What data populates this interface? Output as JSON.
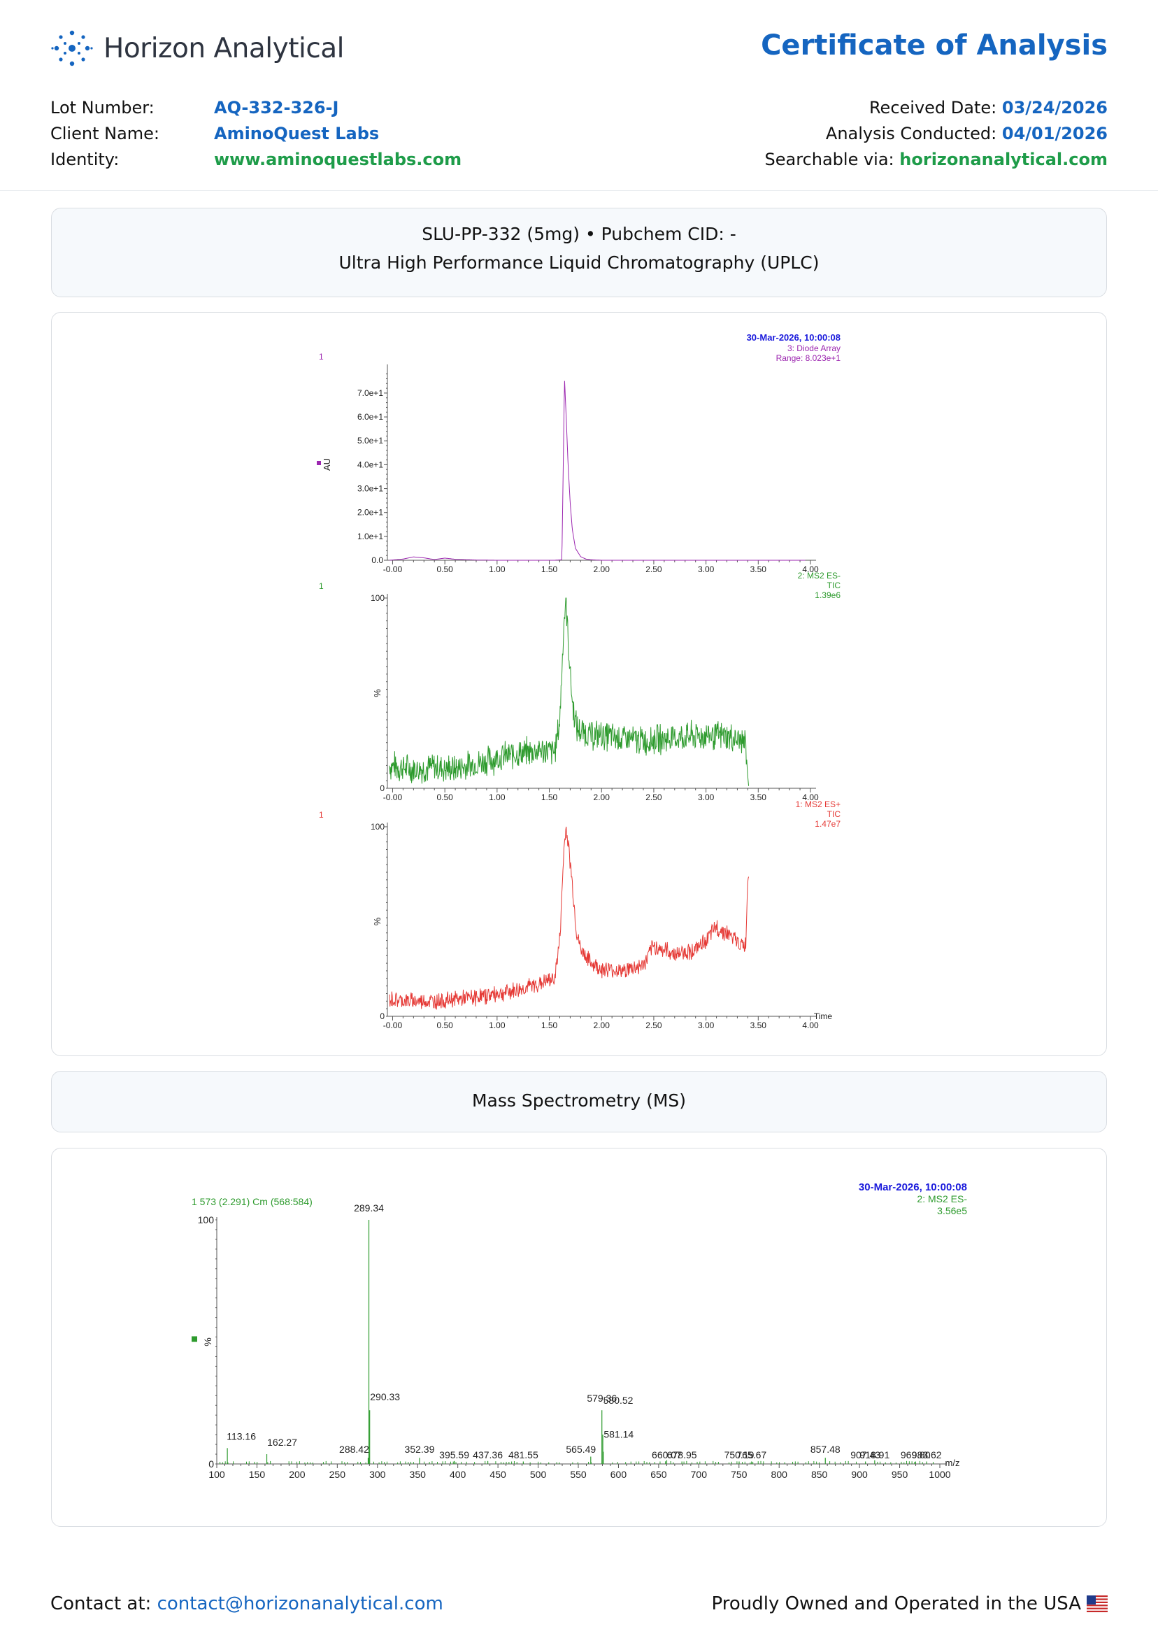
{
  "header": {
    "brand": "Horizon Analytical",
    "doc_title": "Certificate of Analysis",
    "lot_label": "Lot Number:",
    "lot_value": "AQ-332-326-J",
    "client_label": "Client Name:",
    "client_value": "AminoQuest Labs",
    "identity_label": "Identity:",
    "identity_value": "www.aminoquestlabs.com",
    "received_label": "Received Date:",
    "received_value": "03/24/2026",
    "analysis_label": "Analysis Conducted:",
    "analysis_value": "04/01/2026",
    "search_label": "Searchable via:",
    "search_value": "horizonanalytical.com"
  },
  "uplc_panel": {
    "line1": "SLU-PP-332 (5mg) • Pubchem CID: -",
    "line2": "Ultra High Performance Liquid Chromatography (UPLC)"
  },
  "ms_panel": {
    "title": "Mass Spectrometry (MS)"
  },
  "footer": {
    "contact_label": "Contact at:",
    "contact_email": "contact@horizonanalytical.com",
    "tagline": "Proudly Owned and Operated in the USA"
  },
  "colors": {
    "brand_blue": "#1565c0",
    "link_green": "#1e9c49",
    "trace_purple": "#9c27b0",
    "trace_green": "#2e9b2e",
    "trace_red": "#e53935"
  },
  "chart_data": [
    {
      "type": "line",
      "header": {
        "date": "30-Mar-2026, 10:00:08",
        "line2": "3: Diode Array",
        "line3": "Range: 8.023e+1"
      },
      "channel": "1",
      "ylabel": "AU",
      "xlim": [
        -0.05,
        4.0
      ],
      "ylim": [
        0,
        80.23
      ],
      "x_ticks": [
        "-0.00",
        "0.50",
        "1.00",
        "1.50",
        "2.00",
        "2.50",
        "3.00",
        "3.50",
        "4.00"
      ],
      "y_ticks": [
        "0.0",
        "1.0e+1",
        "2.0e+1",
        "3.0e+1",
        "4.0e+1",
        "5.0e+1",
        "6.0e+1",
        "7.0e+1"
      ],
      "series": [
        {
          "color": "#9c27b0",
          "x": [
            -0.03,
            0.1,
            0.2,
            0.3,
            0.4,
            0.5,
            0.6,
            0.8,
            1.0,
            1.2,
            1.4,
            1.55,
            1.62,
            1.635,
            1.645,
            1.66,
            1.68,
            1.7,
            1.72,
            1.75,
            1.8,
            1.85,
            1.9,
            2.0,
            2.5,
            3.0,
            3.5,
            3.95
          ],
          "y": [
            0,
            0.5,
            1.4,
            1.0,
            0.3,
            0.9,
            0.4,
            0.1,
            0,
            0,
            0,
            0,
            0.2,
            45,
            76,
            62,
            40,
            24,
            13,
            5,
            1.5,
            0.5,
            0.2,
            0,
            0,
            0,
            0,
            0
          ]
        }
      ]
    },
    {
      "type": "line",
      "header": {
        "line1": "2: MS2 ES-",
        "line2": "TIC",
        "line3": "1.39e6"
      },
      "channel": "1",
      "ylabel": "%",
      "xlim": [
        -0.05,
        4.0
      ],
      "ylim": [
        0,
        100
      ],
      "x_ticks": [
        "-0.00",
        "0.50",
        "1.00",
        "1.50",
        "2.00",
        "2.50",
        "3.00",
        "3.50",
        "4.00"
      ],
      "y_ticks": [
        "0",
        "100"
      ],
      "series": [
        {
          "color": "#2e9b2e",
          "x": [
            -0.03,
            0.2,
            0.4,
            0.6,
            0.8,
            1.0,
            1.2,
            1.4,
            1.55,
            1.6,
            1.64,
            1.66,
            1.68,
            1.72,
            1.76,
            1.8,
            1.9,
            2.0,
            2.2,
            2.4,
            2.6,
            2.8,
            3.0,
            3.2,
            3.38,
            3.4,
            3.41
          ],
          "y": [
            12,
            10,
            11,
            10,
            13,
            16,
            18,
            20,
            19,
            35,
            88,
            100,
            78,
            45,
            32,
            30,
            28,
            28,
            26,
            25,
            26,
            27,
            28,
            27,
            24,
            6,
            0
          ]
        }
      ]
    },
    {
      "type": "line",
      "header": {
        "line1": "1: MS2 ES+",
        "line2": "TIC",
        "line3": "1.47e7"
      },
      "channel": "1",
      "ylabel": "%",
      "xlabel": "Time",
      "xlim": [
        -0.05,
        4.0
      ],
      "ylim": [
        0,
        100
      ],
      "x_ticks": [
        "-0.00",
        "0.50",
        "1.00",
        "1.50",
        "2.00",
        "2.50",
        "3.00",
        "3.50",
        "4.00"
      ],
      "y_ticks": [
        "0",
        "100"
      ],
      "series": [
        {
          "color": "#e53935",
          "x": [
            -0.03,
            0.2,
            0.4,
            0.6,
            0.8,
            1.0,
            1.2,
            1.4,
            1.55,
            1.6,
            1.64,
            1.66,
            1.68,
            1.72,
            1.76,
            1.8,
            1.9,
            2.0,
            2.2,
            2.4,
            2.5,
            2.7,
            2.9,
            3.0,
            3.1,
            3.2,
            3.3,
            3.38,
            3.4,
            3.41
          ],
          "y": [
            9,
            8,
            8,
            9,
            10,
            12,
            14,
            17,
            20,
            40,
            88,
            100,
            92,
            70,
            45,
            35,
            28,
            25,
            24,
            27,
            37,
            33,
            35,
            40,
            47,
            44,
            39,
            37,
            72,
            74
          ]
        }
      ]
    },
    {
      "type": "bar",
      "header": {
        "date": "30-Mar-2026, 10:00:08",
        "line2": "2: MS2 ES-",
        "line3": "3.56e5"
      },
      "scan_label": "1 573 (2.291) Cm (568:584)",
      "ylabel": "%",
      "xlabel": "m/z",
      "xlim": [
        100,
        1000
      ],
      "ylim": [
        0,
        100
      ],
      "x_ticks": [
        "100",
        "150",
        "200",
        "250",
        "300",
        "350",
        "400",
        "450",
        "500",
        "550",
        "600",
        "650",
        "700",
        "750",
        "800",
        "850",
        "900",
        "950",
        "1000"
      ],
      "y_ticks": [
        "0",
        "100"
      ],
      "peaks": [
        {
          "mz": 113.16,
          "i": 6.5,
          "label": "113.16"
        },
        {
          "mz": 162.27,
          "i": 4.0,
          "label": "162.27"
        },
        {
          "mz": 288.42,
          "i": 2.5,
          "label": "288.42"
        },
        {
          "mz": 289.34,
          "i": 100,
          "label": "289.34"
        },
        {
          "mz": 290.33,
          "i": 22,
          "label": "290.33"
        },
        {
          "mz": 352.39,
          "i": 2.5,
          "label": "352.39"
        },
        {
          "mz": 395.59,
          "i": 1.2,
          "label": "395.59"
        },
        {
          "mz": 437.36,
          "i": 1.2,
          "label": "437.36"
        },
        {
          "mz": 481.55,
          "i": 1.0,
          "label": "481.55"
        },
        {
          "mz": 565.49,
          "i": 3.0,
          "label": "565.49"
        },
        {
          "mz": 579.36,
          "i": 22,
          "label": "579.36"
        },
        {
          "mz": 580.52,
          "i": 12,
          "label": "580.52"
        },
        {
          "mz": 581.14,
          "i": 5,
          "label": "581.14"
        },
        {
          "mz": 660.07,
          "i": 1.5,
          "label": "660.07"
        },
        {
          "mz": 678.95,
          "i": 1.0,
          "label": "678.95"
        },
        {
          "mz": 750.19,
          "i": 1.0,
          "label": "750.19"
        },
        {
          "mz": 765.67,
          "i": 1.0,
          "label": "765.67"
        },
        {
          "mz": 857.48,
          "i": 2.5,
          "label": "857.48"
        },
        {
          "mz": 907.43,
          "i": 1.0,
          "label": "907.43"
        },
        {
          "mz": 918.91,
          "i": 1.5,
          "label": "918.91"
        },
        {
          "mz": 969.8,
          "i": 1.0,
          "label": "969.80"
        },
        {
          "mz": 983.62,
          "i": 1.0,
          "label": "983.62"
        }
      ]
    }
  ]
}
